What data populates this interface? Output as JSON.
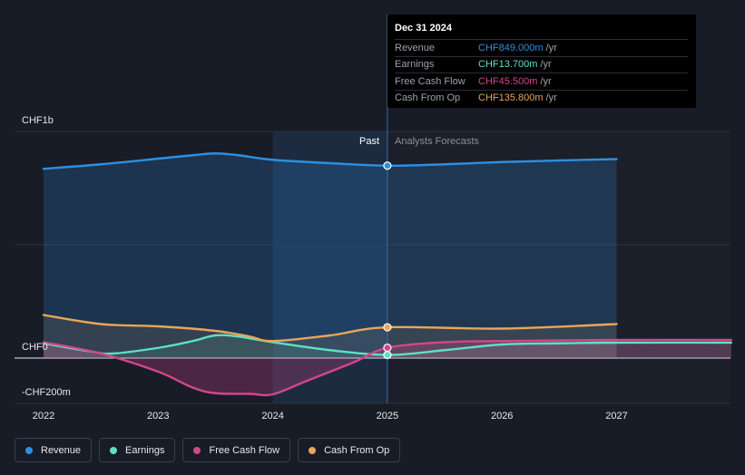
{
  "chart_data": {
    "type": "line",
    "x_labels": [
      "2022",
      "2023",
      "2024",
      "2025",
      "2026",
      "2027"
    ],
    "x_range": [
      2022.0,
      2028.0
    ],
    "y_range": [
      -200,
      1000
    ],
    "y_labels": [
      {
        "value": 1000,
        "text": "CHF1b"
      },
      {
        "value": 0,
        "text": "CHF0"
      },
      {
        "value": -200,
        "text": "-CHF200m"
      }
    ],
    "divider_x": 2025.0,
    "shaded_past_from": 2024.0,
    "region_labels": {
      "past": "Past",
      "forecast": "Analysts Forecasts"
    },
    "unit": "CHF m",
    "series": [
      {
        "name": "Revenue",
        "color": "#2d8fe0",
        "fill": true,
        "points": [
          [
            2022.0,
            835
          ],
          [
            2022.5,
            855
          ],
          [
            2023.0,
            880
          ],
          [
            2023.3,
            895
          ],
          [
            2023.5,
            903
          ],
          [
            2023.7,
            895
          ],
          [
            2024.0,
            875
          ],
          [
            2024.5,
            860
          ],
          [
            2025.0,
            849
          ],
          [
            2025.5,
            855
          ],
          [
            2026.0,
            865
          ],
          [
            2026.5,
            872
          ],
          [
            2027.0,
            878
          ]
        ]
      },
      {
        "name": "Earnings",
        "color": "#5ee0c3",
        "fill": true,
        "points": [
          [
            2022.0,
            65
          ],
          [
            2022.4,
            30
          ],
          [
            2022.6,
            20
          ],
          [
            2023.0,
            45
          ],
          [
            2023.3,
            75
          ],
          [
            2023.5,
            100
          ],
          [
            2023.7,
            95
          ],
          [
            2024.0,
            70
          ],
          [
            2024.5,
            35
          ],
          [
            2025.0,
            13.7
          ],
          [
            2025.5,
            35
          ],
          [
            2026.0,
            60
          ],
          [
            2026.5,
            65
          ],
          [
            2027.0,
            68
          ],
          [
            2028.0,
            68
          ]
        ]
      },
      {
        "name": "Free Cash Flow",
        "color": "#d2468c",
        "fill": true,
        "points": [
          [
            2022.0,
            70
          ],
          [
            2022.5,
            20
          ],
          [
            2023.0,
            -60
          ],
          [
            2023.3,
            -130
          ],
          [
            2023.5,
            -155
          ],
          [
            2023.8,
            -158
          ],
          [
            2024.0,
            -160
          ],
          [
            2024.3,
            -100
          ],
          [
            2024.7,
            -20
          ],
          [
            2025.0,
            45.5
          ],
          [
            2025.5,
            70
          ],
          [
            2026.0,
            75
          ],
          [
            2027.0,
            80
          ],
          [
            2028.0,
            80
          ]
        ]
      },
      {
        "name": "Cash From Op",
        "color": "#e9a55a",
        "fill": true,
        "points": [
          [
            2022.0,
            190
          ],
          [
            2022.5,
            150
          ],
          [
            2023.0,
            140
          ],
          [
            2023.5,
            120
          ],
          [
            2023.8,
            95
          ],
          [
            2024.0,
            75
          ],
          [
            2024.5,
            100
          ],
          [
            2025.0,
            135.8
          ],
          [
            2026.0,
            130
          ],
          [
            2027.0,
            150
          ]
        ]
      }
    ]
  },
  "tooltip": {
    "date": "Dec 31 2024",
    "rows": [
      {
        "name": "Revenue",
        "value": "CHF849.000m",
        "unit": "/yr",
        "color": "#2d8fe0"
      },
      {
        "name": "Earnings",
        "value": "CHF13.700m",
        "unit": "/yr",
        "color": "#5ee0c3"
      },
      {
        "name": "Free Cash Flow",
        "value": "CHF45.500m",
        "unit": "/yr",
        "color": "#d2468c"
      },
      {
        "name": "Cash From Op",
        "value": "CHF135.800m",
        "unit": "/yr",
        "color": "#e9a55a"
      }
    ]
  },
  "legend": [
    {
      "name": "Revenue",
      "color": "#2d8fe0"
    },
    {
      "name": "Earnings",
      "color": "#5ee0c3"
    },
    {
      "name": "Free Cash Flow",
      "color": "#d2468c"
    },
    {
      "name": "Cash From Op",
      "color": "#e9a55a"
    }
  ]
}
